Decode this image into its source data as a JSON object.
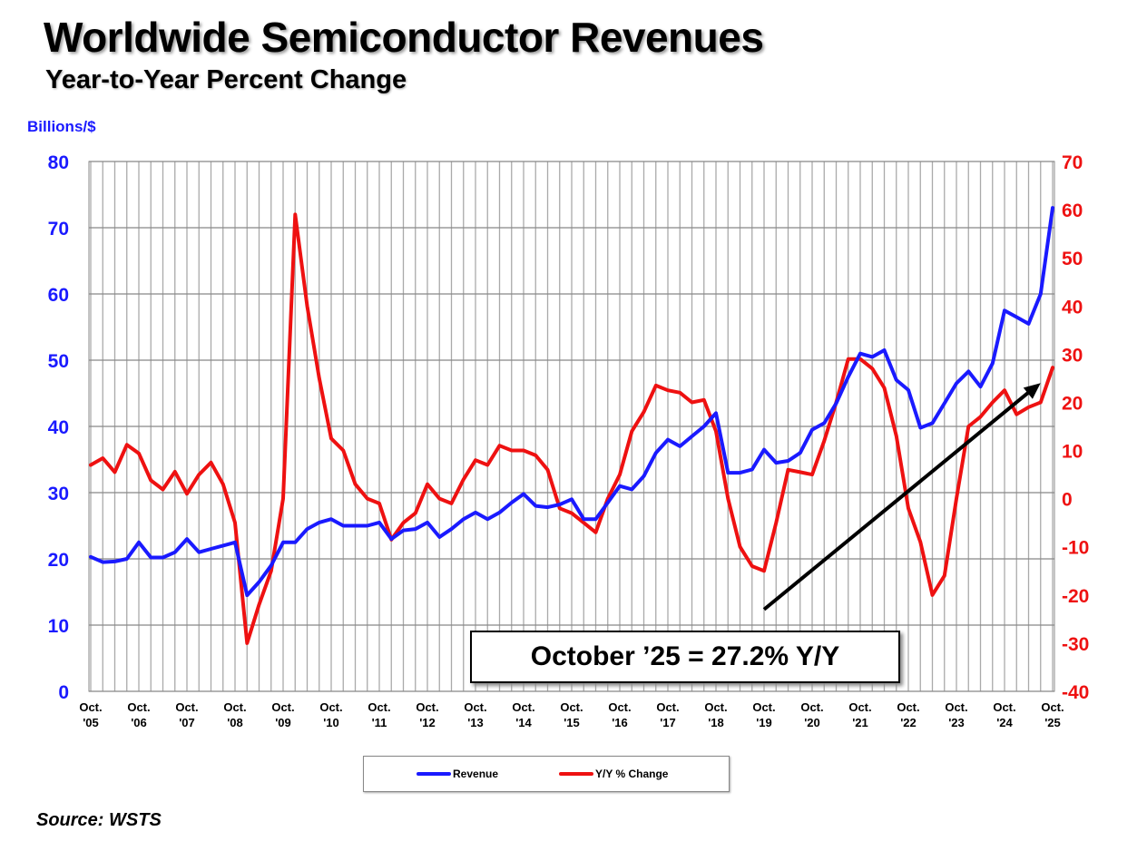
{
  "title": "Worldwide Semiconductor Revenues",
  "subtitle": "Year-to-Year Percent Change",
  "source": "Source: WSTS",
  "chart_data": {
    "type": "line",
    "title": "Worldwide Semiconductor Revenues",
    "subtitle": "Year-to-Year Percent Change",
    "ylabel_left": "Billions/$",
    "ylim_left": [
      0,
      80
    ],
    "yticks_left": [
      0,
      10,
      20,
      30,
      40,
      50,
      60,
      70,
      80
    ],
    "ylim_right": [
      -40,
      70
    ],
    "yticks_right": [
      -40,
      -30,
      -20,
      -10,
      0,
      10,
      20,
      30,
      40,
      50,
      60,
      70
    ],
    "xticks": [
      [
        "Oct.",
        "'05"
      ],
      [
        "Oct.",
        "'06"
      ],
      [
        "Oct.",
        "'07"
      ],
      [
        "Oct.",
        "'08"
      ],
      [
        "Oct.",
        "'09"
      ],
      [
        "Oct.",
        "'10"
      ],
      [
        "Oct.",
        "'11"
      ],
      [
        "Oct.",
        "'12"
      ],
      [
        "Oct.",
        "'13"
      ],
      [
        "Oct.",
        "'14"
      ],
      [
        "Oct.",
        "'15"
      ],
      [
        "Oct.",
        "'16"
      ],
      [
        "Oct.",
        "'17"
      ],
      [
        "Oct.",
        "'18"
      ],
      [
        "Oct.",
        "'19"
      ],
      [
        "Oct.",
        "'20"
      ],
      [
        "Oct.",
        "'21"
      ],
      [
        "Oct.",
        "'22"
      ],
      [
        "Oct.",
        "'23"
      ],
      [
        "Oct.",
        "'24"
      ],
      [
        "Oct.",
        "'25"
      ]
    ],
    "x_start": "2005-10",
    "x_end": "2025-10",
    "x_step": "quarter",
    "grid": true,
    "legend_position": "bottom",
    "colors": {
      "revenue": "#1a1aff",
      "yoy": "#ee1111"
    },
    "series": [
      {
        "name": "Revenue",
        "axis": "left",
        "values": [
          20.3,
          19.5,
          19.6,
          20,
          22.5,
          20.2,
          20.2,
          21,
          23,
          21,
          21.5,
          22,
          22.5,
          14.5,
          16.5,
          19,
          22.5,
          22.5,
          24.5,
          25.5,
          26,
          25,
          25,
          25,
          25.5,
          23,
          24.3,
          24.5,
          25.5,
          23.3,
          24.5,
          26,
          27,
          26,
          27,
          28.5,
          29.8,
          28,
          27.8,
          28.2,
          29,
          26,
          26,
          28.5,
          31,
          30.5,
          32.5,
          36,
          38,
          37,
          38.5,
          40,
          42,
          33,
          33,
          33.5,
          36.5,
          34.5,
          34.8,
          36,
          39.5,
          40.5,
          43.5,
          47.5,
          51,
          50.5,
          51.5,
          47,
          45.5,
          39.8,
          40.5,
          43.5,
          46.5,
          48.3,
          46,
          49.5,
          57.5,
          56.5,
          55.5,
          60,
          73
        ]
      },
      {
        "name": "Y/Y % Change",
        "axis": "right",
        "values": [
          7,
          8.4,
          5.5,
          11.2,
          9.4,
          3.8,
          1.9,
          5.6,
          1,
          5,
          7.5,
          3,
          -5,
          -30,
          -22,
          -15,
          0,
          59,
          40,
          25,
          12.5,
          10,
          3,
          0,
          -1,
          -8.5,
          -5,
          -3,
          3,
          0,
          -1,
          4,
          8,
          7,
          11,
          10,
          10,
          9,
          6,
          -2,
          -3,
          -5,
          -7,
          0,
          5,
          14,
          18,
          23.5,
          22.5,
          22,
          20,
          20.5,
          14,
          0,
          -10,
          -14,
          -15,
          -5,
          6,
          5.5,
          5,
          12,
          20,
          29,
          29,
          27,
          23,
          13,
          -2,
          -9,
          -20,
          -16,
          0,
          15,
          17,
          20,
          22.5,
          17.5,
          19,
          20,
          27.2
        ]
      }
    ],
    "annotations": [
      {
        "type": "arrow",
        "from": [
          "2019-10",
          -23
        ],
        "to": [
          "2025-07",
          24
        ],
        "axis": "right",
        "color": "#000000"
      },
      {
        "type": "box",
        "text": "October ’25 = 27.2% Y/Y"
      }
    ]
  }
}
